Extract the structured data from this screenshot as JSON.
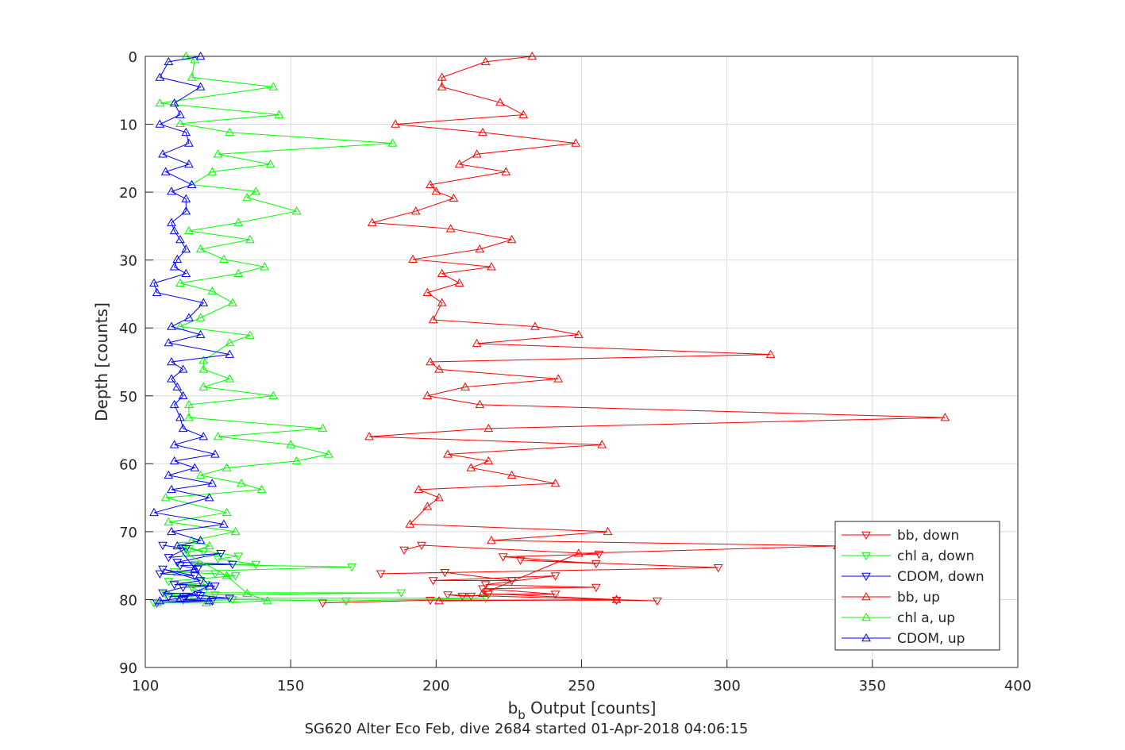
{
  "chart_data": {
    "type": "line",
    "title": "SG620 Alter Eco Feb, dive 2684 started 01-Apr-2018 04:06:15",
    "xlabel_main": "b",
    "xlabel_sub": "b",
    "xlabel_rest": " Output [counts]",
    "ylabel": "Depth [counts]",
    "xlim": [
      100,
      400
    ],
    "ylim": [
      0,
      90
    ],
    "y_reversed": true,
    "grid": true,
    "legend_position": "right",
    "x_ticks": [
      100,
      150,
      200,
      250,
      300,
      350,
      400
    ],
    "y_ticks": [
      0,
      10,
      20,
      30,
      40,
      50,
      60,
      70,
      80,
      90
    ],
    "x_tick_labels": [
      "100",
      "150",
      "200",
      "250",
      "300",
      "350",
      "400"
    ],
    "y_tick_labels": [
      "0",
      "10",
      "20",
      "30",
      "40",
      "50",
      "60",
      "70",
      "80",
      "90"
    ],
    "series": [
      {
        "name": "bb, down",
        "color": "#ff0000",
        "marker": "triangle-down",
        "x": [
          189,
          195,
          256,
          223,
          255,
          229,
          297,
          181,
          203,
          226,
          199,
          241,
          217,
          255,
          216,
          241,
          218,
          212,
          209,
          204,
          276,
          262,
          198,
          161
        ],
        "y": [
          72.7,
          72,
          73.3,
          73.7,
          74.7,
          74.2,
          75.3,
          76.2,
          76,
          77.2,
          77.2,
          76.5,
          77.8,
          78.2,
          78.4,
          79.2,
          79.2,
          79.5,
          79.5,
          79.3,
          80.2,
          80.1,
          80.1,
          80.5
        ]
      },
      {
        "name": "chl a, down",
        "color": "#00ff00",
        "marker": "triangle-down",
        "x": [
          113,
          120,
          115,
          132,
          125,
          138,
          117,
          171,
          110,
          124,
          131,
          108,
          121,
          116,
          120,
          188,
          124,
          111,
          107,
          115,
          217,
          169,
          130,
          103
        ],
        "y": [
          72,
          73,
          72.5,
          73.6,
          74,
          74.8,
          74.8,
          75.2,
          75.9,
          76.2,
          76.5,
          77.3,
          77.8,
          78.2,
          79,
          79,
          79.3,
          79.6,
          79.2,
          79.8,
          79.8,
          80.2,
          80,
          80.5
        ]
      },
      {
        "name": "CDOM, down",
        "color": "#0000ff",
        "marker": "triangle-down",
        "x": [
          106,
          114,
          108,
          126,
          111,
          130,
          112,
          118,
          105,
          117,
          106,
          119,
          110,
          124,
          113,
          106,
          118,
          108,
          114,
          119,
          129,
          113,
          123,
          104
        ],
        "y": [
          72,
          72.5,
          73.8,
          73.2,
          74.5,
          74.8,
          75,
          75.5,
          76.2,
          76.5,
          75.5,
          77.2,
          77.8,
          78,
          78.2,
          79,
          79.2,
          79.6,
          79.5,
          79.4,
          79.8,
          80,
          80.2,
          80.5
        ]
      },
      {
        "name": "bb, up",
        "color": "#ff0000",
        "marker": "triangle-up",
        "x": [
          233,
          217,
          202,
          202,
          222,
          230,
          186,
          216,
          248,
          214,
          208,
          224,
          198,
          200,
          206,
          193,
          178,
          205,
          226,
          215,
          192,
          219,
          202,
          208,
          197,
          202,
          199,
          234,
          249,
          214,
          315,
          198,
          201,
          242,
          210,
          197,
          215,
          375,
          218,
          177,
          257,
          204,
          218,
          212,
          226,
          241,
          194,
          201,
          197,
          191,
          259,
          219,
          338,
          249,
          216,
          262,
          201
        ],
        "y": [
          0,
          0.8,
          3.1,
          4.5,
          6.8,
          8.6,
          10,
          11.2,
          12.8,
          14.4,
          15.9,
          17,
          18.9,
          19.9,
          20.9,
          22.8,
          24.5,
          25.4,
          27,
          28.4,
          29.9,
          31,
          32,
          33.4,
          34.8,
          36.3,
          38.8,
          39.8,
          41,
          42.3,
          43.9,
          45,
          46.1,
          47.5,
          48.7,
          50,
          51.3,
          53.2,
          54.8,
          56,
          57.2,
          58.6,
          59.6,
          60.6,
          61.7,
          62.9,
          63.8,
          65,
          66.3,
          68.9,
          70,
          71.3,
          72.1,
          73.2,
          79.1,
          80,
          80.2
        ]
      },
      {
        "name": "chl a, up",
        "color": "#00ff00",
        "marker": "triangle-up",
        "x": [
          114,
          117,
          116,
          144,
          105,
          146,
          112,
          129,
          185,
          125,
          143,
          123,
          116,
          138,
          135,
          152,
          132,
          115,
          136,
          119,
          127,
          141,
          132,
          112,
          123,
          130,
          119,
          112,
          136,
          129,
          120,
          120,
          129,
          120,
          144,
          115,
          115,
          161,
          125,
          150,
          163,
          152,
          128,
          119,
          133,
          140,
          107,
          128,
          108,
          131,
          116,
          122,
          114,
          128,
          135,
          142,
          121,
          104
        ],
        "y": [
          0,
          0.5,
          3.1,
          4.5,
          6.9,
          8.6,
          9.9,
          11.2,
          12.8,
          14.4,
          15.9,
          17,
          18.9,
          19.9,
          20.8,
          22.8,
          24.5,
          25.7,
          27,
          28.4,
          29.9,
          31,
          32,
          33.4,
          34.6,
          36.3,
          38.5,
          39.8,
          41.1,
          42.2,
          44.8,
          46.1,
          47.5,
          48.7,
          50,
          51.3,
          53.2,
          54.8,
          56,
          57.2,
          58.6,
          59.6,
          60.6,
          61.7,
          62.9,
          63.8,
          65,
          67.2,
          68.6,
          70,
          71.3,
          72.1,
          73.2,
          76.5,
          79.1,
          80.2,
          80.5,
          80.5
        ]
      },
      {
        "name": "CDOM, up",
        "color": "#0000ff",
        "marker": "triangle-up",
        "x": [
          119,
          108,
          105,
          119,
          110,
          112,
          105,
          114,
          115,
          106,
          115,
          107,
          116,
          109,
          114,
          114,
          109,
          110,
          112,
          114,
          111,
          110,
          114,
          103,
          104,
          120,
          115,
          109,
          119,
          108,
          129,
          109,
          113,
          109,
          111,
          113,
          110,
          112,
          113,
          120,
          110,
          124,
          110,
          117,
          108,
          123,
          109,
          122,
          103,
          127,
          109,
          119,
          111,
          117,
          122,
          112,
          105,
          122
        ],
        "y": [
          0,
          0.8,
          3.1,
          4.5,
          6.9,
          8.6,
          10,
          11.2,
          12.8,
          14.4,
          15.9,
          17,
          18.9,
          19.9,
          21,
          22.8,
          24.5,
          25.7,
          27,
          28.4,
          29.9,
          31,
          32,
          33.4,
          34.8,
          36.3,
          38.5,
          39.8,
          41,
          42.2,
          43.9,
          45,
          46.1,
          47.5,
          48.7,
          50,
          51.3,
          53.2,
          54.8,
          56,
          57.2,
          58.6,
          59.6,
          60.6,
          61.7,
          62.9,
          63.8,
          65,
          67.2,
          68.9,
          70,
          71.3,
          72.1,
          75.5,
          78,
          79.8,
          80.2,
          80.2
        ]
      }
    ]
  }
}
